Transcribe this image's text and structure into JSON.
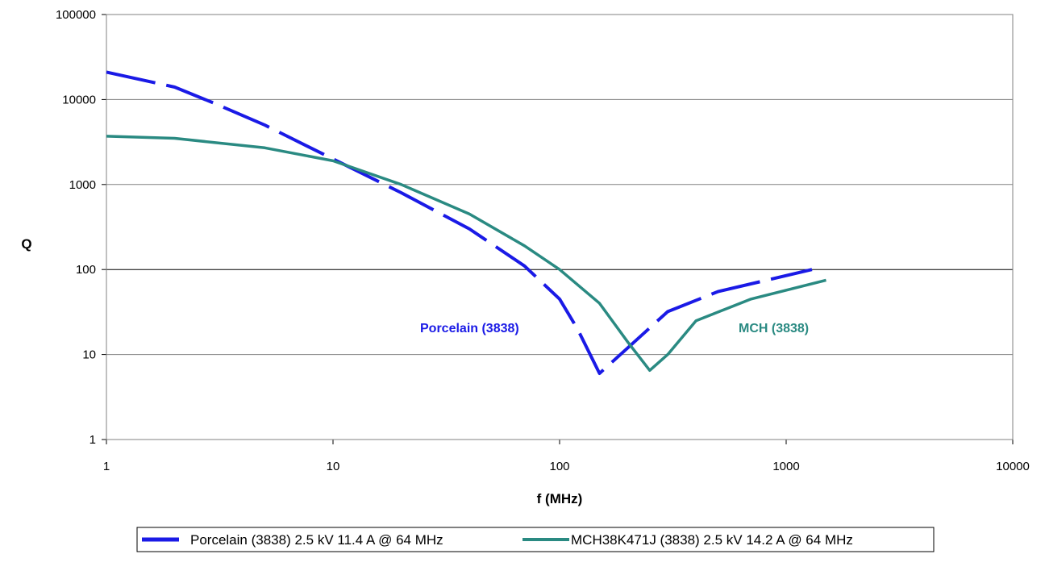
{
  "chart_data": {
    "type": "line",
    "xlabel": "f (MHz)",
    "ylabel": "Q",
    "x_scale": "log",
    "y_scale": "log",
    "xlim": [
      1,
      10000
    ],
    "ylim": [
      1,
      100000
    ],
    "x_ticks": [
      "1",
      "10",
      "100",
      "1000",
      "10000"
    ],
    "y_ticks": [
      "1",
      "10",
      "100",
      "1000",
      "10000",
      "100000"
    ],
    "grid": "horizontal",
    "legend_position": "bottom",
    "series": [
      {
        "name": "Porcelain (3838) 2.5 kV 11.4 A @ 64 MHz",
        "inline_label": "Porcelain (3838)",
        "color": "#1a1ae6",
        "style": "dashed",
        "x": [
          1,
          2,
          3,
          5,
          10,
          20,
          40,
          70,
          100,
          120,
          150,
          200,
          300,
          500,
          1300
        ],
        "y": [
          21000,
          14000,
          9000,
          5000,
          2000,
          800,
          300,
          110,
          45,
          20,
          6,
          12,
          32,
          55,
          100
        ]
      },
      {
        "name": "MCH38K471J (3838) 2.5 kV 14.2 A @ 64 MHz",
        "inline_label": "MCH (3838)",
        "color": "#2a8a82",
        "style": "solid",
        "x": [
          1,
          2,
          5,
          10,
          20,
          40,
          70,
          100,
          150,
          200,
          250,
          300,
          400,
          700,
          1500
        ],
        "y": [
          3700,
          3500,
          2700,
          1900,
          1000,
          450,
          190,
          100,
          40,
          14,
          6.5,
          10,
          25,
          45,
          75
        ]
      }
    ]
  }
}
